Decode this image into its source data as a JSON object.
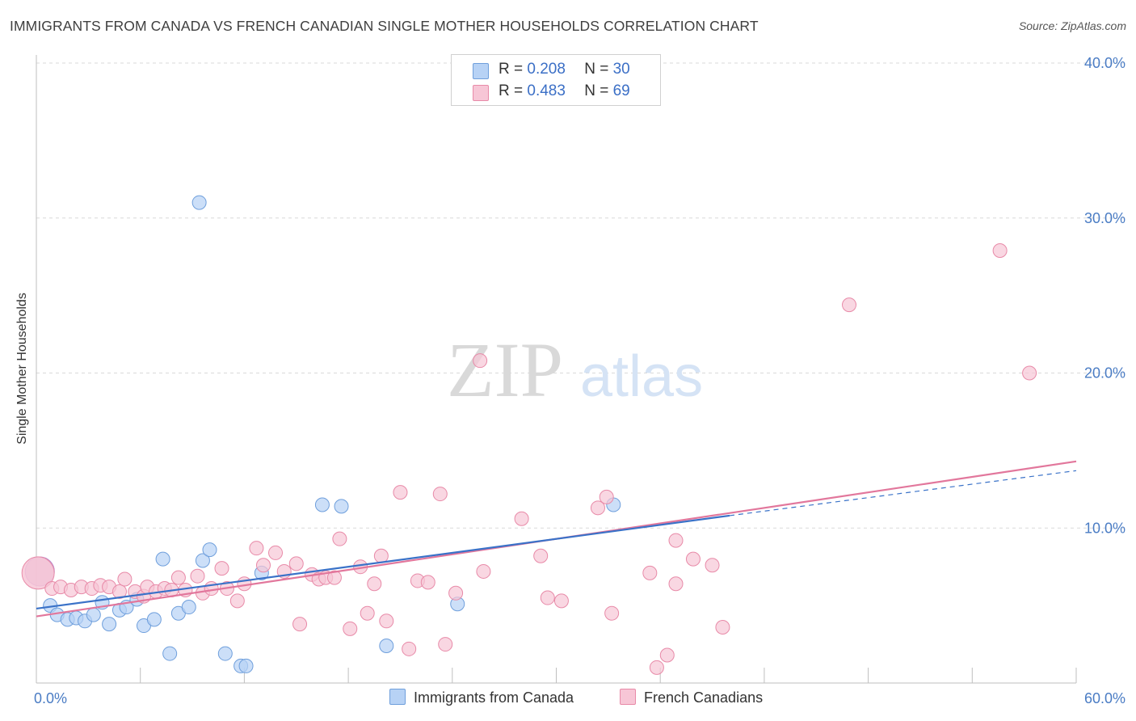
{
  "header": {
    "title": "IMMIGRANTS FROM CANADA VS FRENCH CANADIAN SINGLE MOTHER HOUSEHOLDS CORRELATION CHART",
    "source": "Source: ZipAtlas.com"
  },
  "watermark": {
    "zip": "ZIP",
    "atlas": "atlas"
  },
  "colors": {
    "blue_fill": "#b7d2f5",
    "blue_stroke": "#6f9fdc",
    "blue_line": "#3a72c8",
    "pink_fill": "#f7c6d6",
    "pink_stroke": "#e88aa8",
    "pink_line": "#e2779c",
    "grid": "#d9d9d9",
    "tick_text": "#4a7cc4"
  },
  "legend": {
    "rows": [
      {
        "r_label": "R = ",
        "r_value": "0.208",
        "n_label": "N = ",
        "n_value": "30"
      },
      {
        "r_label": "R = ",
        "r_value": "0.483",
        "n_label": "N = ",
        "n_value": "69"
      }
    ],
    "series": [
      "Immigrants from Canada",
      "French Canadians"
    ]
  },
  "chart_data": {
    "type": "scatter",
    "title": "IMMIGRANTS FROM CANADA VS FRENCH CANADIAN SINGLE MOTHER HOUSEHOLDS CORRELATION CHART",
    "xlabel": "",
    "ylabel": "Single Mother Households",
    "xlim": [
      0,
      60
    ],
    "ylim": [
      0,
      40
    ],
    "x_tick_labels": [
      "0.0%",
      "60.0%"
    ],
    "y_ticks": [
      10,
      20,
      30,
      40
    ],
    "y_tick_labels": [
      "10.0%",
      "20.0%",
      "30.0%",
      "40.0%"
    ],
    "grid": true,
    "series": [
      {
        "name": "Immigrants from Canada",
        "color": "blue",
        "R": 0.208,
        "N": 30,
        "trend": {
          "x0": 0,
          "y0": 4.8,
          "x1": 40,
          "y1": 10.8,
          "dashed_to_x": 60,
          "dashed_to_y": 13.7
        },
        "points": [
          [
            0.2,
            7.2
          ],
          [
            0.8,
            5.0
          ],
          [
            1.2,
            4.4
          ],
          [
            1.8,
            4.1
          ],
          [
            2.3,
            4.2
          ],
          [
            2.8,
            4.0
          ],
          [
            3.3,
            4.4
          ],
          [
            3.8,
            5.2
          ],
          [
            4.2,
            3.8
          ],
          [
            4.8,
            4.7
          ],
          [
            5.2,
            4.9
          ],
          [
            5.8,
            5.4
          ],
          [
            6.2,
            3.7
          ],
          [
            6.8,
            4.1
          ],
          [
            7.3,
            8.0
          ],
          [
            7.7,
            1.9
          ],
          [
            8.2,
            4.5
          ],
          [
            8.8,
            4.9
          ],
          [
            9.4,
            31.0
          ],
          [
            9.6,
            7.9
          ],
          [
            10.0,
            8.6
          ],
          [
            10.9,
            1.9
          ],
          [
            11.8,
            1.1
          ],
          [
            12.1,
            1.1
          ],
          [
            13.0,
            7.1
          ],
          [
            16.5,
            11.5
          ],
          [
            17.6,
            11.4
          ],
          [
            20.2,
            2.4
          ],
          [
            24.3,
            5.1
          ],
          [
            33.3,
            11.5
          ]
        ]
      },
      {
        "name": "French Canadians",
        "color": "pink",
        "R": 0.483,
        "N": 69,
        "trend": {
          "x0": 0,
          "y0": 4.3,
          "x1": 60,
          "y1": 14.3
        },
        "points": [
          [
            0.1,
            7.1
          ],
          [
            0.9,
            6.1
          ],
          [
            1.4,
            6.2
          ],
          [
            2.0,
            6.0
          ],
          [
            2.6,
            6.2
          ],
          [
            3.2,
            6.1
          ],
          [
            3.7,
            6.3
          ],
          [
            4.2,
            6.2
          ],
          [
            4.8,
            5.9
          ],
          [
            5.1,
            6.7
          ],
          [
            5.7,
            5.9
          ],
          [
            6.2,
            5.6
          ],
          [
            6.4,
            6.2
          ],
          [
            6.9,
            5.9
          ],
          [
            7.4,
            6.1
          ],
          [
            7.8,
            6.0
          ],
          [
            8.2,
            6.8
          ],
          [
            8.6,
            6.0
          ],
          [
            9.3,
            6.9
          ],
          [
            9.6,
            5.8
          ],
          [
            10.1,
            6.1
          ],
          [
            10.7,
            7.4
          ],
          [
            11.0,
            6.1
          ],
          [
            11.6,
            5.3
          ],
          [
            12.0,
            6.4
          ],
          [
            12.7,
            8.7
          ],
          [
            13.1,
            7.6
          ],
          [
            13.8,
            8.4
          ],
          [
            14.3,
            7.2
          ],
          [
            15.0,
            7.7
          ],
          [
            15.2,
            3.8
          ],
          [
            15.9,
            7.0
          ],
          [
            16.3,
            6.7
          ],
          [
            16.7,
            6.8
          ],
          [
            17.2,
            6.8
          ],
          [
            17.5,
            9.3
          ],
          [
            18.1,
            3.5
          ],
          [
            18.7,
            7.5
          ],
          [
            19.1,
            4.5
          ],
          [
            19.5,
            6.4
          ],
          [
            19.9,
            8.2
          ],
          [
            20.2,
            4.0
          ],
          [
            21.0,
            12.3
          ],
          [
            21.5,
            2.2
          ],
          [
            22.0,
            6.6
          ],
          [
            22.6,
            6.5
          ],
          [
            23.3,
            12.2
          ],
          [
            23.6,
            2.5
          ],
          [
            24.2,
            5.8
          ],
          [
            25.6,
            20.8
          ],
          [
            25.8,
            7.2
          ],
          [
            28.0,
            10.6
          ],
          [
            29.1,
            8.2
          ],
          [
            29.5,
            5.5
          ],
          [
            30.3,
            5.3
          ],
          [
            32.4,
            11.3
          ],
          [
            32.9,
            12.0
          ],
          [
            33.2,
            4.5
          ],
          [
            35.4,
            7.1
          ],
          [
            35.8,
            1.0
          ],
          [
            36.4,
            1.8
          ],
          [
            36.9,
            6.4
          ],
          [
            36.9,
            9.2
          ],
          [
            37.9,
            8.0
          ],
          [
            39.0,
            7.6
          ],
          [
            39.6,
            3.6
          ],
          [
            46.9,
            24.4
          ],
          [
            55.6,
            27.9
          ],
          [
            57.3,
            20.0
          ]
        ]
      }
    ]
  }
}
